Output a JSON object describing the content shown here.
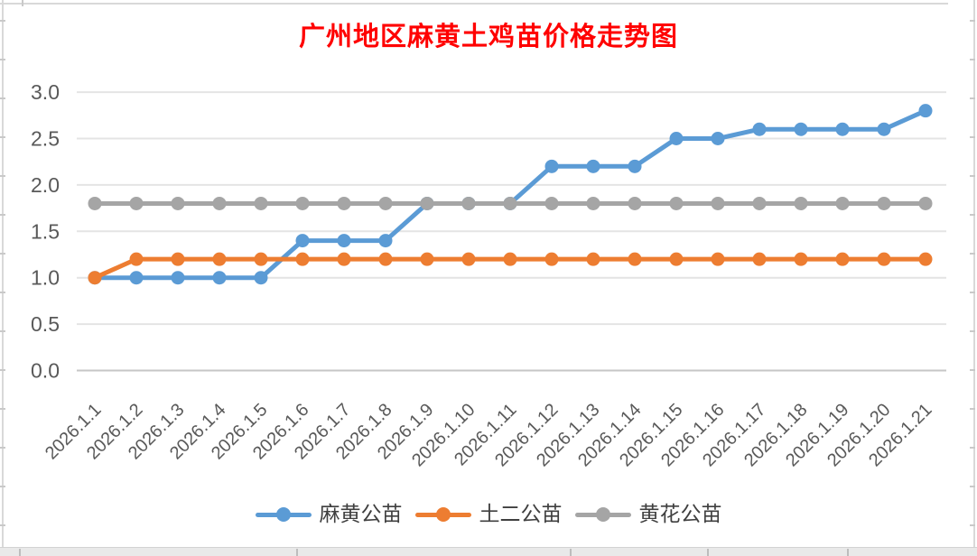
{
  "title": {
    "text": "广州地区麻黄土鸡苗价格走势图",
    "color": "#FF0000"
  },
  "chart_data": {
    "type": "line",
    "title": "广州地区麻黄土鸡苗价格走势图",
    "categories": [
      "2026.1.1",
      "2026.1.2",
      "2026.1.3",
      "2026.1.4",
      "2026.1.5",
      "2026.1.6",
      "2026.1.7",
      "2026.1.8",
      "2026.1.9",
      "2026.1.10",
      "2026.1.11",
      "2026.1.12",
      "2026.1.13",
      "2026.1.14",
      "2026.1.15",
      "2026.1.16",
      "2026.1.17",
      "2026.1.18",
      "2026.1.19",
      "2026.1.20",
      "2026.1.21"
    ],
    "series": [
      {
        "name": "麻黄公苗",
        "color": "#5B9BD5",
        "values": [
          1.0,
          1.0,
          1.0,
          1.0,
          1.0,
          1.4,
          1.4,
          1.4,
          1.8,
          1.8,
          1.8,
          2.2,
          2.2,
          2.2,
          2.5,
          2.5,
          2.6,
          2.6,
          2.6,
          2.6,
          2.8
        ]
      },
      {
        "name": "土二公苗",
        "color": "#ED7D31",
        "values": [
          1.0,
          1.2,
          1.2,
          1.2,
          1.2,
          1.2,
          1.2,
          1.2,
          1.2,
          1.2,
          1.2,
          1.2,
          1.2,
          1.2,
          1.2,
          1.2,
          1.2,
          1.2,
          1.2,
          1.2,
          1.2
        ]
      },
      {
        "name": "黄花公苗",
        "color": "#A5A5A5",
        "values": [
          1.8,
          1.8,
          1.8,
          1.8,
          1.8,
          1.8,
          1.8,
          1.8,
          1.8,
          1.8,
          1.8,
          1.8,
          1.8,
          1.8,
          1.8,
          1.8,
          1.8,
          1.8,
          1.8,
          1.8,
          1.8
        ]
      }
    ],
    "ylim": [
      0.0,
      3.0
    ],
    "ytick_step": 0.5,
    "ytick_labels": [
      "0.0",
      "0.5",
      "1.0",
      "1.5",
      "2.0",
      "2.5",
      "3.0"
    ],
    "grid": true,
    "legend_position": "bottom",
    "marker": "circle",
    "line_width": 5
  },
  "colors": {
    "axis_text": "#595959",
    "gridline": "#e4e4e4",
    "axis_line": "#c6c6c6",
    "background": "#FFFFFF"
  }
}
